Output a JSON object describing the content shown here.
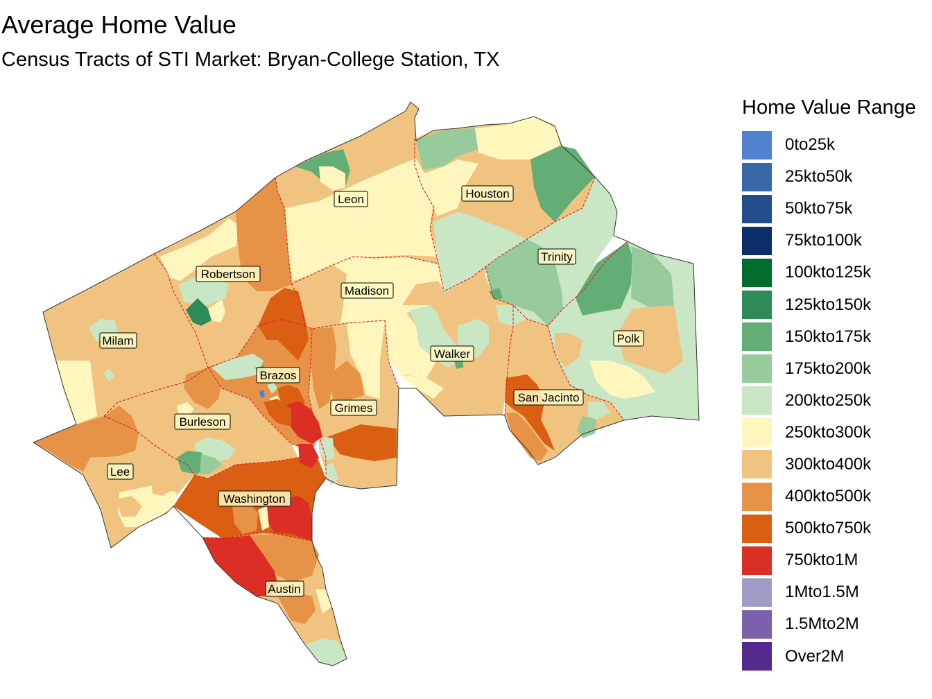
{
  "title": "Average Home Value",
  "subtitle": "Census Tracts of STI Market: Bryan-College Station, TX",
  "legend": {
    "title": "Home Value Range",
    "items": [
      {
        "label": "0to25k",
        "color": "#5083cf"
      },
      {
        "label": "25kto50k",
        "color": "#3867a8"
      },
      {
        "label": "50kto75k",
        "color": "#224c8a"
      },
      {
        "label": "75kto100k",
        "color": "#0b2e69"
      },
      {
        "label": "100kto125k",
        "color": "#006d2c"
      },
      {
        "label": "125kto150k",
        "color": "#2e8b57"
      },
      {
        "label": "150kto175k",
        "color": "#63ad77"
      },
      {
        "label": "175kto200k",
        "color": "#97cb9c"
      },
      {
        "label": "200kto250k",
        "color": "#c9e7c5"
      },
      {
        "label": "250kto300k",
        "color": "#fff6be"
      },
      {
        "label": "300kto400k",
        "color": "#f0c480"
      },
      {
        "label": "400kto500k",
        "color": "#e69247"
      },
      {
        "label": "500kto750k",
        "color": "#db5f12"
      },
      {
        "label": "750kto1M",
        "color": "#db2f26"
      },
      {
        "label": "1Mto1.5M",
        "color": "#a09cc8"
      },
      {
        "label": "1.5Mto2M",
        "color": "#7b60ac"
      },
      {
        "label": "Over2M",
        "color": "#552a8f"
      }
    ]
  },
  "counties": [
    {
      "name": "Leon"
    },
    {
      "name": "Houston"
    },
    {
      "name": "Robertson"
    },
    {
      "name": "Madison"
    },
    {
      "name": "Trinity"
    },
    {
      "name": "Milam"
    },
    {
      "name": "Brazos"
    },
    {
      "name": "Walker"
    },
    {
      "name": "Polk"
    },
    {
      "name": "Grimes"
    },
    {
      "name": "Burleson"
    },
    {
      "name": "San Jacinto"
    },
    {
      "name": "Lee"
    },
    {
      "name": "Washington"
    },
    {
      "name": "Austin"
    }
  ]
}
